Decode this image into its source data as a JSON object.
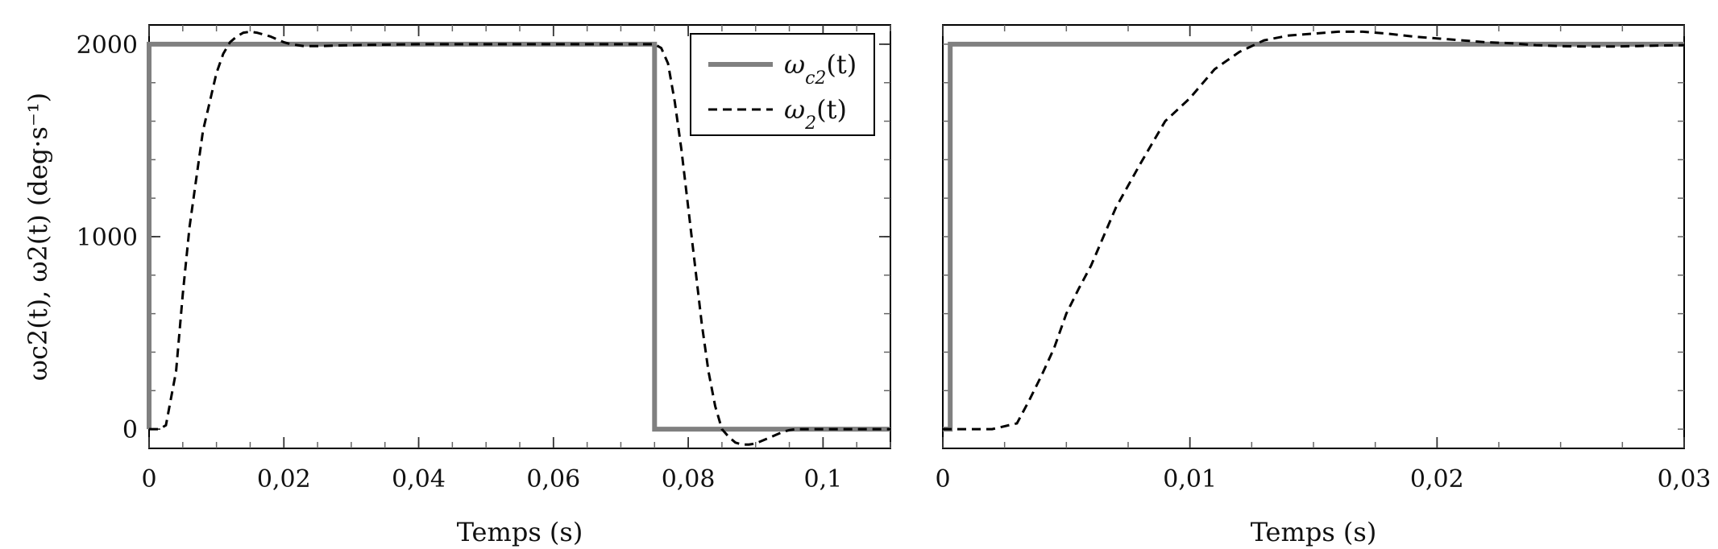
{
  "chart_data": [
    {
      "type": "line",
      "title": "",
      "xlabel": "Temps (s)",
      "ylabel": "ωc2(t), ω2(t) (deg·s⁻¹)",
      "xlim": [
        0,
        0.11
      ],
      "ylim": [
        -100,
        2100
      ],
      "xticks": [
        0,
        0.02,
        0.04,
        0.06,
        0.08,
        0.1
      ],
      "xtick_labels": [
        "0",
        "0,02",
        "0,04",
        "0,06",
        "0,08",
        "0,1"
      ],
      "yticks": [
        0,
        1000,
        2000
      ],
      "ytick_labels": [
        "0",
        "1000",
        "2000"
      ],
      "grid": false,
      "legend": {
        "placement": "top-right",
        "entries": [
          {
            "label": "ωc2(t)",
            "base": "ω",
            "sub": "c2",
            "suffix": "(t)"
          },
          {
            "label": "ω2(t)",
            "base": "ω",
            "sub": "2",
            "suffix": "(t)"
          }
        ]
      },
      "series": [
        {
          "name": "ωc2(t)",
          "color": "#808080",
          "style": "solid",
          "x": [
            0,
            0,
            0.075,
            0.075,
            0.11
          ],
          "y": [
            0,
            2000,
            2000,
            0,
            0
          ]
        },
        {
          "name": "ω2(t)",
          "color": "#000000",
          "style": "dashed",
          "x": [
            0,
            0.0015,
            0.0025,
            0.004,
            0.005,
            0.006,
            0.007,
            0.008,
            0.009,
            0.01,
            0.011,
            0.012,
            0.013,
            0.014,
            0.015,
            0.016,
            0.017,
            0.018,
            0.019,
            0.02,
            0.021,
            0.022,
            0.023,
            0.024,
            0.025,
            0.03,
            0.04,
            0.05,
            0.06,
            0.07,
            0.075,
            0.076,
            0.077,
            0.078,
            0.079,
            0.08,
            0.081,
            0.082,
            0.083,
            0.084,
            0.085,
            0.086,
            0.087,
            0.088,
            0.089,
            0.09,
            0.091,
            0.092,
            0.093,
            0.094,
            0.095,
            0.096,
            0.1,
            0.11
          ],
          "y": [
            0,
            0,
            20,
            300,
            700,
            1050,
            1300,
            1550,
            1700,
            1850,
            1950,
            2010,
            2040,
            2060,
            2065,
            2060,
            2050,
            2040,
            2025,
            2010,
            2000,
            1995,
            1990,
            1990,
            1990,
            1995,
            2000,
            2000,
            2000,
            2000,
            2000,
            1980,
            1900,
            1700,
            1450,
            1150,
            850,
            550,
            300,
            120,
            0,
            -40,
            -70,
            -80,
            -80,
            -75,
            -60,
            -45,
            -30,
            -15,
            -5,
            0,
            0,
            0
          ]
        }
      ]
    },
    {
      "type": "line",
      "title": "",
      "xlabel": "Temps (s)",
      "ylabel": "",
      "xlim": [
        0,
        0.03
      ],
      "ylim": [
        -100,
        2100
      ],
      "xticks": [
        0,
        0.01,
        0.02,
        0.03
      ],
      "xtick_labels": [
        "0",
        "0,01",
        "0,02",
        "0,03"
      ],
      "yticks": [],
      "ytick_labels": [],
      "grid": false,
      "series": [
        {
          "name": "ωc2(t)",
          "color": "#808080",
          "style": "solid",
          "x": [
            0,
            0.0003,
            0.0003,
            0.03
          ],
          "y": [
            0,
            0,
            2000,
            2000
          ]
        },
        {
          "name": "ω2(t)",
          "color": "#000000",
          "style": "dashed",
          "x": [
            0,
            0.002,
            0.003,
            0.0035,
            0.004,
            0.0045,
            0.005,
            0.0055,
            0.006,
            0.007,
            0.008,
            0.009,
            0.01,
            0.011,
            0.012,
            0.013,
            0.014,
            0.015,
            0.016,
            0.017,
            0.018,
            0.019,
            0.02,
            0.021,
            0.022,
            0.023,
            0.024,
            0.025,
            0.026,
            0.027,
            0.028,
            0.029,
            0.03
          ],
          "y": [
            0,
            0,
            30,
            150,
            280,
            420,
            600,
            730,
            850,
            1150,
            1380,
            1600,
            1720,
            1870,
            1960,
            2020,
            2045,
            2055,
            2065,
            2065,
            2055,
            2040,
            2030,
            2020,
            2010,
            2005,
            1995,
            1990,
            1988,
            1988,
            1990,
            1993,
            1995
          ]
        }
      ]
    }
  ]
}
